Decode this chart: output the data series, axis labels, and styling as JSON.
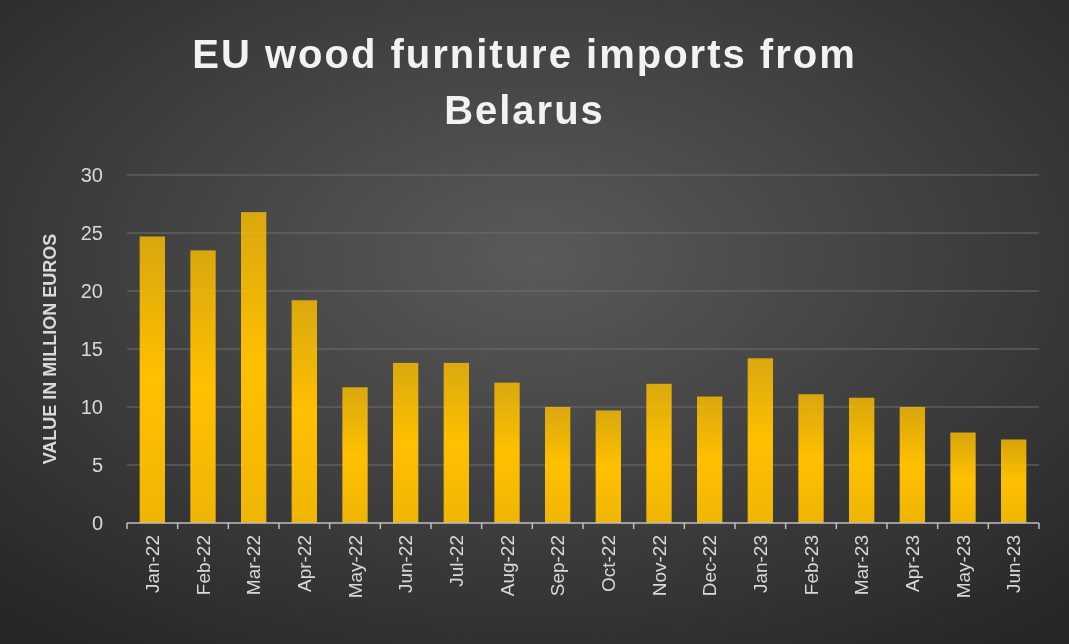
{
  "chart_data": {
    "type": "bar",
    "title": "EU wood furniture imports from Belarus",
    "ylabel": "VALUE IN MILLION EUROS",
    "categories": [
      "Jan-22",
      "Feb-22",
      "Mar-22",
      "Apr-22",
      "May-22",
      "Jun-22",
      "Jul-22",
      "Aug-22",
      "Sep-22",
      "Oct-22",
      "Nov-22",
      "Dec-22",
      "Jan-23",
      "Feb-23",
      "Mar-23",
      "Apr-23",
      "May-23",
      "Jun-23"
    ],
    "values": [
      24.7,
      23.5,
      26.8,
      19.2,
      11.7,
      13.8,
      13.8,
      12.1,
      10.0,
      9.7,
      12.0,
      10.9,
      14.2,
      11.1,
      10.8,
      10.0,
      7.8,
      7.2
    ],
    "color": "#ffc000",
    "ylim": [
      0,
      30
    ],
    "yticks": [
      0,
      5,
      10,
      15,
      20,
      25,
      30
    ],
    "grid": "y"
  }
}
